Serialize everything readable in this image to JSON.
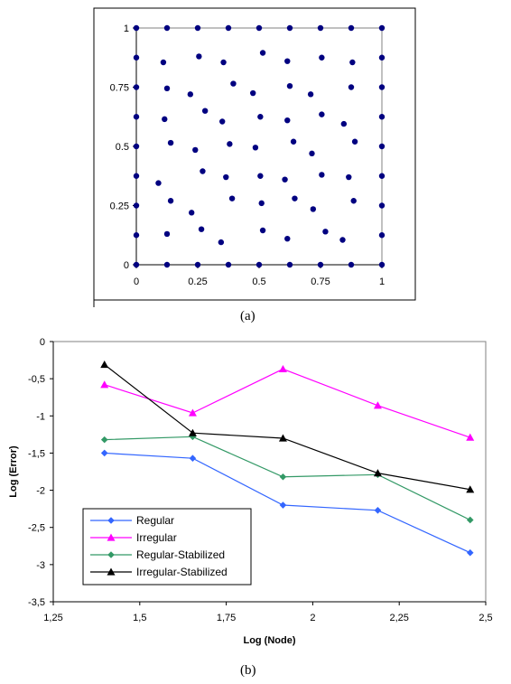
{
  "captions": {
    "a": "(a)",
    "b": "(b)"
  },
  "chart_data": [
    {
      "type": "scatter",
      "title": "",
      "xlabel": "",
      "ylabel": "",
      "xlim": [
        0,
        1
      ],
      "ylim": [
        0,
        1
      ],
      "xticks": [
        "0",
        "0.25",
        "0.5",
        "0.75",
        "1"
      ],
      "yticks": [
        "0",
        "0.25",
        "0.5",
        "0.75",
        "1"
      ],
      "grid": false,
      "marker_color": "#000080",
      "points": [
        [
          0,
          0
        ],
        [
          0.125,
          0
        ],
        [
          0.25,
          0
        ],
        [
          0.375,
          0
        ],
        [
          0.5,
          0
        ],
        [
          0.625,
          0
        ],
        [
          0.75,
          0
        ],
        [
          0.875,
          0
        ],
        [
          1,
          0
        ],
        [
          0,
          1
        ],
        [
          0.125,
          1
        ],
        [
          0.25,
          1
        ],
        [
          0.375,
          1
        ],
        [
          0.5,
          1
        ],
        [
          0.625,
          1
        ],
        [
          0.75,
          1
        ],
        [
          0.875,
          1
        ],
        [
          1,
          1
        ],
        [
          0,
          0.125
        ],
        [
          0,
          0.25
        ],
        [
          0,
          0.375
        ],
        [
          0,
          0.5
        ],
        [
          0,
          0.625
        ],
        [
          0,
          0.75
        ],
        [
          0,
          0.875
        ],
        [
          1,
          0.125
        ],
        [
          1,
          0.25
        ],
        [
          1,
          0.375
        ],
        [
          1,
          0.5
        ],
        [
          1,
          0.625
        ],
        [
          1,
          0.75
        ],
        [
          1,
          0.875
        ],
        [
          0.11,
          0.855
        ],
        [
          0.255,
          0.88
        ],
        [
          0.355,
          0.855
        ],
        [
          0.515,
          0.895
        ],
        [
          0.615,
          0.86
        ],
        [
          0.755,
          0.875
        ],
        [
          0.88,
          0.855
        ],
        [
          0.125,
          0.745
        ],
        [
          0.22,
          0.72
        ],
        [
          0.395,
          0.765
        ],
        [
          0.475,
          0.725
        ],
        [
          0.625,
          0.755
        ],
        [
          0.71,
          0.72
        ],
        [
          0.875,
          0.75
        ],
        [
          0.115,
          0.615
        ],
        [
          0.28,
          0.65
        ],
        [
          0.35,
          0.605
        ],
        [
          0.505,
          0.625
        ],
        [
          0.615,
          0.61
        ],
        [
          0.755,
          0.635
        ],
        [
          0.845,
          0.595
        ],
        [
          0.14,
          0.515
        ],
        [
          0.24,
          0.485
        ],
        [
          0.38,
          0.51
        ],
        [
          0.485,
          0.495
        ],
        [
          0.64,
          0.52
        ],
        [
          0.715,
          0.47
        ],
        [
          0.89,
          0.52
        ],
        [
          0.09,
          0.345
        ],
        [
          0.27,
          0.395
        ],
        [
          0.365,
          0.37
        ],
        [
          0.505,
          0.375
        ],
        [
          0.605,
          0.36
        ],
        [
          0.755,
          0.38
        ],
        [
          0.865,
          0.37
        ],
        [
          0.14,
          0.27
        ],
        [
          0.225,
          0.22
        ],
        [
          0.39,
          0.28
        ],
        [
          0.51,
          0.26
        ],
        [
          0.645,
          0.28
        ],
        [
          0.72,
          0.235
        ],
        [
          0.885,
          0.27
        ],
        [
          0.125,
          0.13
        ],
        [
          0.265,
          0.15
        ],
        [
          0.345,
          0.095
        ],
        [
          0.515,
          0.145
        ],
        [
          0.615,
          0.11
        ],
        [
          0.77,
          0.14
        ],
        [
          0.84,
          0.105
        ]
      ]
    },
    {
      "type": "line",
      "title": "",
      "xlabel": "Log (Node)",
      "ylabel": "Log (Error)",
      "xlim": [
        1.25,
        2.5
      ],
      "ylim": [
        -3.5,
        0
      ],
      "xticks": [
        "1,25",
        "1,5",
        "1,75",
        "2",
        "2,25",
        "2,5"
      ],
      "yticks": [
        "0",
        "-0,5",
        "-1",
        "-1,5",
        "-2",
        "-2,5",
        "-3",
        "-3,5"
      ],
      "grid": false,
      "legend_position": "bottom-left",
      "x": [
        1.398,
        1.653,
        1.914,
        2.188,
        2.455
      ],
      "series": [
        {
          "name": "Regular",
          "color": "#3366ff",
          "marker": "diamond",
          "values": [
            -1.5,
            -1.57,
            -2.2,
            -2.27,
            -2.84
          ]
        },
        {
          "name": "Irregular",
          "color": "#ff00ff",
          "marker": "triangle",
          "values": [
            -0.58,
            -0.96,
            -0.37,
            -0.86,
            -1.29
          ]
        },
        {
          "name": "Regular-Stabilized",
          "color": "#339966",
          "marker": "diamond",
          "values": [
            -1.32,
            -1.28,
            -1.82,
            -1.79,
            -2.4
          ]
        },
        {
          "name": "Irregular-Stabilized",
          "color": "#000000",
          "marker": "triangle",
          "values": [
            -0.31,
            -1.23,
            -1.3,
            -1.77,
            -1.99
          ]
        }
      ]
    }
  ]
}
